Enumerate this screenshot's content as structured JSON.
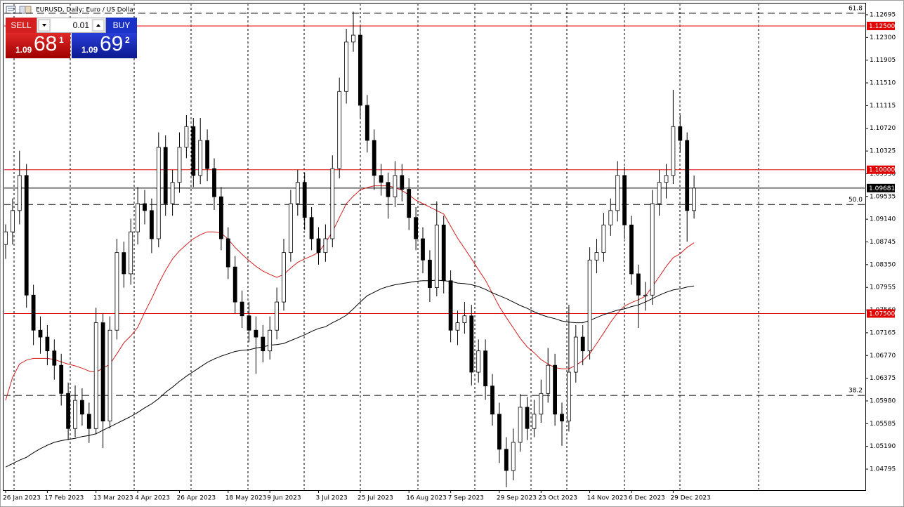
{
  "chart_data": {
    "type": "candlestick",
    "title": "EURUSD, Daily: Euro / US Dolla",
    "ylim": [
      1.04429,
      1.1289
    ],
    "yticks": [
      {
        "value": 1.12695,
        "label": "1.12695"
      },
      {
        "value": 1.123,
        "label": "1.12300"
      },
      {
        "value": 1.11905,
        "label": "1.11905"
      },
      {
        "value": 1.1151,
        "label": "1.11510"
      },
      {
        "value": 1.11115,
        "label": "1.11115"
      },
      {
        "value": 1.1072,
        "label": "1.10720"
      },
      {
        "value": 1.10325,
        "label": "1.10325"
      },
      {
        "value": 1.0993,
        "label": "1.09930"
      },
      {
        "value": 1.09535,
        "label": "1.09535"
      },
      {
        "value": 1.0914,
        "label": "1.09140"
      },
      {
        "value": 1.08745,
        "label": "1.08745"
      },
      {
        "value": 1.0835,
        "label": "1.08350"
      },
      {
        "value": 1.07955,
        "label": "1.07955"
      },
      {
        "value": 1.0756,
        "label": "1.07560"
      },
      {
        "value": 1.07165,
        "label": "1.07165"
      },
      {
        "value": 1.0677,
        "label": "1.06770"
      },
      {
        "value": 1.06375,
        "label": "1.06375"
      },
      {
        "value": 1.0598,
        "label": "1.05980"
      },
      {
        "value": 1.05585,
        "label": "1.05585"
      },
      {
        "value": 1.0519,
        "label": "1.05190"
      },
      {
        "value": 1.04795,
        "label": "1.04795"
      }
    ],
    "grid": false,
    "candle_colors": {
      "up": "#ffffff",
      "down": "#000000",
      "outline": "#000000"
    },
    "categories": [
      "26 Jan 2023",
      null,
      null,
      null,
      null,
      null,
      "17 Feb 2023",
      null,
      null,
      null,
      null,
      null,
      null,
      "13 Mar 2023",
      null,
      null,
      null,
      null,
      null,
      "4 Apr 2023",
      null,
      null,
      null,
      null,
      null,
      "26 Apr 2023",
      null,
      null,
      null,
      null,
      null,
      null,
      "18 May 2023",
      null,
      null,
      null,
      null,
      null,
      "9 Jun 2023",
      null,
      null,
      null,
      null,
      null,
      null,
      "3 Jul 2023",
      null,
      null,
      null,
      null,
      null,
      "25 Jul 2023",
      null,
      null,
      null,
      null,
      null,
      null,
      "16 Aug 2023",
      null,
      null,
      null,
      null,
      null,
      "7 Sep 2023",
      null,
      null,
      null,
      null,
      null,
      null,
      "29 Sep 2023",
      null,
      null,
      null,
      null,
      null,
      "23 Oct 2023",
      null,
      null,
      null,
      null,
      null,
      null,
      "14 Nov 2023",
      null,
      null,
      null,
      null,
      null,
      "6 Dec 2023",
      null,
      null,
      null,
      null,
      null,
      "29 Dec 2023",
      null,
      null,
      null
    ],
    "open": [
      1.087,
      1.0892,
      1.0929,
      1.099,
      1.0782,
      1.0721,
      1.0709,
      1.0685,
      1.066,
      1.0611,
      1.055,
      1.0599,
      1.0575,
      1.055,
      1.0734,
      1.0563,
      1.0721,
      1.0856,
      1.0819,
      1.0892,
      1.0941,
      1.0929,
      1.088,
      1.1039,
      1.0941,
      1.0978,
      1.1039,
      1.1075,
      1.099,
      1.1051,
      1.1002,
      1.0953,
      1.088,
      1.0831,
      1.077,
      1.0746,
      1.0721,
      1.0709,
      1.0685,
      1.0721,
      1.077,
      1.0856,
      1.0941,
      1.0978,
      1.0917,
      1.088,
      1.0856,
      1.088,
      1.1002,
      1.1136,
      1.1222,
      1.1234,
      1.1112,
      1.1051,
      1.099,
      1.0978,
      1.0953,
      1.099,
      1.0966,
      1.0917,
      1.088,
      1.0843,
      1.0795,
      1.0904,
      1.0807,
      1.0721,
      1.0734,
      1.0746,
      1.0648,
      1.0685,
      1.0624,
      1.0575,
      1.0514,
      1.0477,
      1.0526,
      1.0587,
      1.055,
      1.0575,
      1.0611,
      1.066,
      1.0575,
      1.0563,
      1.0648,
      1.0709,
      1.0685,
      1.0843,
      1.0856,
      1.0904,
      1.0929,
      1.099,
      1.0904,
      1.0819,
      1.0782,
      1.0782,
      1.0941,
      1.0978,
      1.099,
      1.1075,
      1.1051,
      1.0929
    ],
    "high": [
      1.0905,
      1.095,
      1.1033,
      1.101,
      1.08,
      1.0745,
      1.073,
      1.0705,
      1.068,
      1.063,
      1.0625,
      1.062,
      1.0595,
      1.076,
      1.075,
      1.0745,
      1.088,
      1.0875,
      1.0915,
      1.097,
      1.0965,
      1.095,
      1.1065,
      1.106,
      1.1,
      1.1065,
      1.1095,
      1.109,
      1.109,
      1.107,
      1.102,
      1.097,
      1.09,
      1.085,
      1.079,
      1.077,
      1.0745,
      1.073,
      1.0745,
      1.0795,
      1.088,
      1.0965,
      1.1,
      1.0995,
      1.0935,
      1.09,
      1.0905,
      1.1025,
      1.116,
      1.1245,
      1.1275,
      1.125,
      1.113,
      1.107,
      1.101,
      1.0995,
      1.1015,
      1.101,
      1.0985,
      1.0935,
      1.09,
      1.086,
      1.0945,
      1.092,
      1.0825,
      1.0755,
      1.077,
      1.0765,
      1.0705,
      1.0705,
      1.0645,
      1.0595,
      1.0535,
      1.055,
      1.061,
      1.0605,
      1.06,
      1.0635,
      1.069,
      1.068,
      1.0595,
      1.0765,
      1.073,
      1.073,
      1.0865,
      1.088,
      1.0925,
      1.095,
      1.1015,
      1.1005,
      1.092,
      1.0835,
      1.0805,
      1.0965,
      1.1,
      1.101,
      1.1139,
      1.1095,
      1.1065,
      1.099
    ],
    "low": [
      1.0845,
      1.087,
      1.0905,
      1.076,
      1.0695,
      1.068,
      1.066,
      1.0635,
      1.059,
      1.053,
      1.0535,
      1.0555,
      1.0525,
      1.054,
      1.0516,
      1.055,
      1.0705,
      1.0795,
      1.08,
      1.087,
      1.0905,
      1.0855,
      1.0865,
      1.092,
      1.092,
      1.096,
      1.102,
      1.097,
      1.0975,
      1.098,
      1.093,
      1.086,
      1.081,
      1.075,
      1.0725,
      1.07,
      1.0645,
      1.0665,
      1.067,
      1.0705,
      1.0755,
      1.084,
      1.092,
      1.0895,
      1.086,
      1.0835,
      1.084,
      1.0865,
      1.0985,
      1.1115,
      1.1205,
      1.109,
      1.103,
      1.0965,
      1.0955,
      1.0915,
      1.0935,
      1.0945,
      1.0895,
      1.086,
      1.082,
      1.077,
      1.078,
      1.0785,
      1.07,
      1.0695,
      1.0715,
      1.0625,
      1.063,
      1.06,
      1.0555,
      1.049,
      1.0448,
      1.046,
      1.051,
      1.053,
      1.0535,
      1.056,
      1.0595,
      1.0555,
      1.052,
      1.0545,
      1.063,
      1.066,
      1.067,
      1.082,
      1.084,
      1.0885,
      1.091,
      1.088,
      1.08,
      1.0725,
      1.0755,
      1.0765,
      1.092,
      1.095,
      1.0975,
      1.103,
      1.0875,
      1.0915
    ],
    "close": [
      1.0892,
      1.0929,
      1.099,
      1.0782,
      1.0721,
      1.0709,
      1.0685,
      1.066,
      1.0611,
      1.055,
      1.0599,
      1.0575,
      1.055,
      1.0734,
      1.0563,
      1.0721,
      1.0856,
      1.0819,
      1.0892,
      1.0941,
      1.0929,
      1.088,
      1.1039,
      1.0941,
      1.0978,
      1.1039,
      1.1075,
      1.099,
      1.1051,
      1.1002,
      1.0953,
      1.088,
      1.0831,
      1.077,
      1.0746,
      1.0721,
      1.0709,
      1.0685,
      1.0721,
      1.077,
      1.0856,
      1.0941,
      1.0978,
      1.0917,
      1.088,
      1.0856,
      1.088,
      1.1002,
      1.1136,
      1.1222,
      1.1234,
      1.1112,
      1.1051,
      1.099,
      1.0978,
      1.0953,
      1.099,
      1.0966,
      1.0917,
      1.088,
      1.0843,
      1.0795,
      1.0904,
      1.0807,
      1.0721,
      1.0734,
      1.0746,
      1.0648,
      1.0685,
      1.0624,
      1.0575,
      1.0514,
      1.0477,
      1.0526,
      1.0587,
      1.055,
      1.0575,
      1.0611,
      1.066,
      1.0575,
      1.0563,
      1.0648,
      1.0709,
      1.0685,
      1.0843,
      1.0856,
      1.0904,
      1.0929,
      1.099,
      1.0904,
      1.0819,
      1.0782,
      1.0782,
      1.0941,
      1.0978,
      1.099,
      1.1075,
      1.1051,
      1.0929,
      1.0968
    ],
    "series": [
      {
        "color": "#d02020",
        "values": [
          1.0599,
          1.0639,
          1.0662,
          1.0669,
          1.0672,
          1.0672,
          1.0672,
          1.067,
          1.0666,
          1.0662,
          1.0659,
          1.0655,
          1.065,
          1.0648,
          1.0655,
          1.0662,
          1.068,
          1.0699,
          1.0711,
          1.0726,
          1.0752,
          1.0776,
          1.0802,
          1.0825,
          1.0845,
          1.0859,
          1.087,
          1.088,
          1.0887,
          1.0892,
          1.0892,
          1.089,
          1.0879,
          1.0865,
          1.0853,
          1.0842,
          1.0832,
          1.0824,
          1.0818,
          1.0813,
          1.0818,
          1.0829,
          1.0839,
          1.0845,
          1.085,
          1.0856,
          1.0873,
          1.0892,
          1.0917,
          1.0941,
          1.0954,
          1.0965,
          1.0969,
          1.0972,
          1.0972,
          1.0972,
          1.0969,
          1.0964,
          1.0956,
          1.0947,
          1.0941,
          1.0935,
          1.0929,
          1.0923,
          1.0902,
          1.0881,
          1.0863,
          1.0845,
          1.0826,
          1.0808,
          1.0785,
          1.0762,
          1.0743,
          1.0725,
          1.0707,
          1.0692,
          1.0682,
          1.067,
          1.0662,
          1.0656,
          1.0654,
          1.0654,
          1.066,
          1.0668,
          1.068,
          1.0698,
          1.0716,
          1.0735,
          1.0751,
          1.0763,
          1.0769,
          1.0774,
          1.078,
          1.0797,
          1.0814,
          1.0832,
          1.0847,
          1.0854,
          1.0865,
          1.0873
        ]
      },
      {
        "color": "#000000",
        "values": [
          1.0483,
          1.0489,
          1.0495,
          1.05,
          1.0508,
          1.0515,
          1.0521,
          1.0526,
          1.0529,
          1.0531,
          1.0533,
          1.0536,
          1.0538,
          1.0541,
          1.0547,
          1.0553,
          1.0559,
          1.0565,
          1.0571,
          1.0578,
          1.0586,
          1.0593,
          1.0602,
          1.0613,
          1.0622,
          1.0632,
          1.0641,
          1.0649,
          1.0657,
          1.0665,
          1.0671,
          1.0676,
          1.068,
          1.0684,
          1.0686,
          1.0687,
          1.069,
          1.0692,
          1.0695,
          1.0696,
          1.0698,
          1.0703,
          1.0708,
          1.0713,
          1.0719,
          1.0724,
          1.0727,
          1.0734,
          1.074,
          1.0747,
          1.0758,
          1.077,
          1.0781,
          1.0787,
          1.0793,
          1.0797,
          1.08,
          1.0802,
          1.0804,
          1.0806,
          1.0807,
          1.0807,
          1.0808,
          1.0807,
          1.0806,
          1.0803,
          1.0802,
          1.08,
          1.0797,
          1.0792,
          1.0786,
          1.0781,
          1.0776,
          1.077,
          1.0764,
          1.0759,
          1.0753,
          1.0748,
          1.0744,
          1.0741,
          1.0737,
          1.0735,
          1.0734,
          1.0734,
          1.0738,
          1.0743,
          1.0748,
          1.0752,
          1.0756,
          1.0758,
          1.0762,
          1.0765,
          1.077,
          1.0776,
          1.0782,
          1.0787,
          1.0791,
          1.0793,
          1.0796,
          1.0798
        ]
      }
    ],
    "price_lines": [
      {
        "value": 1.125,
        "label": "1.12500",
        "color": "#e00000"
      },
      {
        "value": 1.1,
        "label": "1.10000",
        "color": "#e00000"
      },
      {
        "value": 1.09681,
        "label": "1.09681",
        "color": "#000000"
      },
      {
        "value": 1.075,
        "label": "1.07500",
        "color": "#e00000"
      }
    ],
    "fib_levels": [
      {
        "level": 61.8,
        "price": 1.1272
      },
      {
        "level": {
          "value": 50,
          "label": "50.0"
        },
        "price": 1.09395
      },
      {
        "level": 38.2,
        "price": 1.06075
      }
    ]
  },
  "trade_panel": {
    "sell": "SELL",
    "buy": "BUY",
    "lot": "0.01",
    "sell_price": {
      "prefix": "1.09",
      "pips": "68",
      "fraction": "1"
    },
    "buy_price": {
      "prefix": "1.09",
      "pips": "69",
      "fraction": "2"
    }
  }
}
